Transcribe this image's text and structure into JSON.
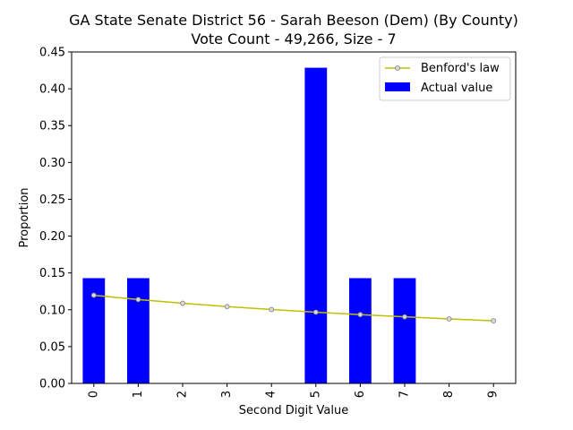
{
  "chart_data": {
    "type": "bar",
    "title_line1": "GA State Senate District 56 - Sarah Beeson (Dem) (By County)",
    "title_line2": "Vote Count - 49,266, Size - 7",
    "xlabel": "Second Digit Value",
    "ylabel": "Proportion",
    "ylim": [
      0,
      0.45
    ],
    "yticks": [
      "0.00",
      "0.05",
      "0.10",
      "0.15",
      "0.20",
      "0.25",
      "0.30",
      "0.35",
      "0.40",
      "0.45"
    ],
    "categories": [
      "0",
      "1",
      "2",
      "3",
      "4",
      "5",
      "6",
      "7",
      "8",
      "9"
    ],
    "series": [
      {
        "name": "Actual value",
        "kind": "bar",
        "color": "#0000ff",
        "values": [
          0.1429,
          0.1429,
          0,
          0,
          0,
          0.4286,
          0.1429,
          0.1429,
          0,
          0
        ]
      },
      {
        "name": "Benford's law",
        "kind": "line",
        "color": "#bfbf00",
        "values": [
          0.1197,
          0.1139,
          0.1088,
          0.1043,
          0.1003,
          0.0967,
          0.0934,
          0.0904,
          0.0876,
          0.085
        ]
      }
    ],
    "legend_position": "top-right",
    "grid": false
  }
}
